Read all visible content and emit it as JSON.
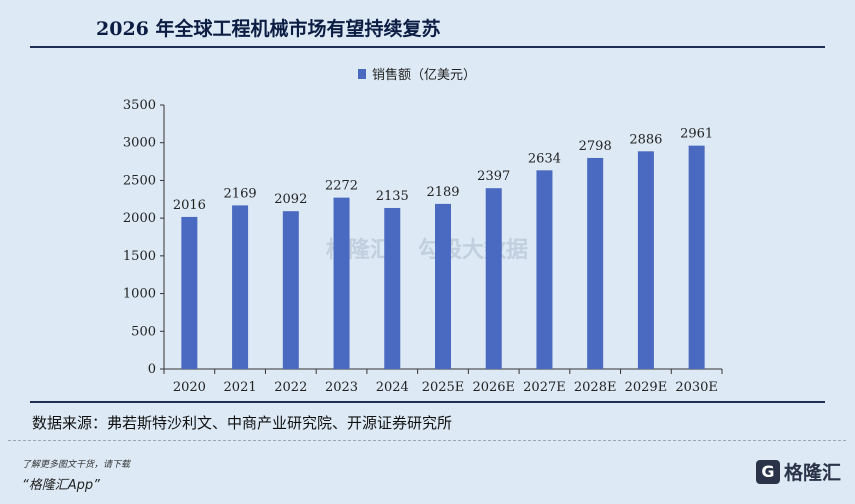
{
  "header": {
    "title": "2026 年全球工程机械市场有望持续复苏"
  },
  "chart_data": {
    "type": "bar",
    "title": "",
    "xlabel": "",
    "ylabel": "",
    "legend": "top-center",
    "grid": false,
    "series": [
      {
        "name": "销售额（亿美元）",
        "color": "#4a69c0",
        "values": [
          2016,
          2169,
          2092,
          2272,
          2135,
          2189,
          2397,
          2634,
          2798,
          2886,
          2961
        ]
      }
    ],
    "categories": [
      "2020",
      "2021",
      "2022",
      "2023",
      "2024",
      "2025E",
      "2026E",
      "2027E",
      "2028E",
      "2029E",
      "2030E"
    ],
    "ylim": [
      0,
      3500
    ],
    "yticks": [
      0,
      500,
      1000,
      1500,
      2000,
      2500,
      3000,
      3500
    ]
  },
  "source": {
    "text": "数据来源：弗若斯特沙利文、中商产业研究院、开源证券研究所"
  },
  "watermarks": {
    "left": "格隆汇",
    "right": "勾股大数据"
  },
  "footer": {
    "promo_line1": "了解更多图文干货，请下载",
    "promo_line2": "“格隆汇App”",
    "brand_mark": "G",
    "brand_name": "格隆汇"
  }
}
